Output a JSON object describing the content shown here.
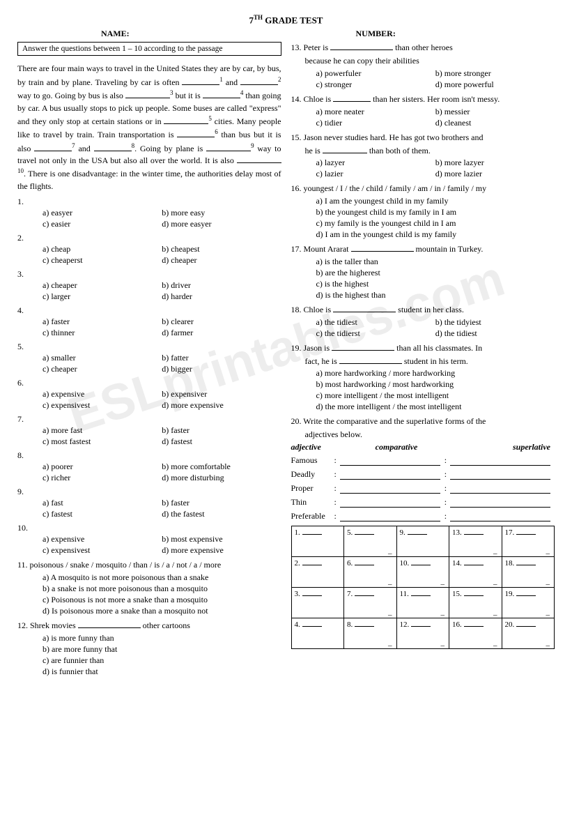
{
  "title_prefix": "7",
  "title_sup": "TH",
  "title_rest": " GRADE TEST",
  "labels": {
    "name": "NAME:",
    "number": "NUMBER:"
  },
  "watermark": "ESLprintables.com",
  "instruction": "Answer the questions between 1 – 10 according to the passage",
  "passage": {
    "t0": "There are four main ways to travel in the United States they are by car, by bus, by train and by plane. Traveling by car is often ",
    "s1": "1",
    "t1": " and ",
    "s2": "2",
    "t2": " way to go. Going by bus is also ",
    "s3": "3",
    "t3": " but it is ",
    "s4": "4",
    "t4": " than going by car. A bus usually stops to pick up people. Some buses are called \"express\" and they only stop at certain stations or in ",
    "s5": "5",
    "t5": " cities. Many people like to travel by train. Train transportation is ",
    "s6": "6",
    "t6": " than bus but it is also ",
    "s7": "7",
    "t7": " and ",
    "s8": "8",
    "t8": ". Going by plane is ",
    "s9": "9",
    "t9": " way to travel not only in the USA but also all over the world. It is also ",
    "s10": "10",
    "t10": ". There is one disadvantage: in the winter time, the authorities delay most of the flights."
  },
  "mcq_left": [
    {
      "n": "1.",
      "opts": [
        "a) easyer",
        "b) more easy",
        "c) easier",
        "d) more easyer"
      ]
    },
    {
      "n": "2.",
      "opts": [
        "a) cheap",
        "b) cheapest",
        "c) cheaperst",
        "d) cheaper"
      ]
    },
    {
      "n": "3.",
      "opts": [
        "a) cheaper",
        "b) driver",
        "c) larger",
        "d) harder"
      ]
    },
    {
      "n": "4.",
      "opts": [
        "a) faster",
        "b) clearer",
        "c) thinner",
        "d) farmer"
      ]
    },
    {
      "n": "5.",
      "opts": [
        "a) smaller",
        "b) fatter",
        "c) cheaper",
        "d) bigger"
      ]
    },
    {
      "n": "6.",
      "opts": [
        "a) expensive",
        "b) expensiver",
        "c) expensivest",
        "d) more expensive"
      ]
    },
    {
      "n": "7.",
      "opts": [
        "a) more fast",
        "b) faster",
        "c) most fastest",
        "d) fastest"
      ]
    },
    {
      "n": "8.",
      "opts": [
        "a) poorer",
        "b) more comfortable",
        "c) richer",
        "d) more disturbing"
      ]
    },
    {
      "n": "9.",
      "opts": [
        "a) fast",
        "b) faster",
        "c) fastest",
        "d) the fastest"
      ]
    },
    {
      "n": "10.",
      "opts": [
        "a) expensive",
        "b) most expensive",
        "c) expensivest",
        "d) more expensive"
      ]
    }
  ],
  "q11": {
    "stem": "11. poisonous / snake / mosquito / than / is / a / not / a / more",
    "opts": [
      "a) A mosquito is not more poisonous than a snake",
      "b) a snake is not more poisonous than a mosquito",
      "c) Poisonous is not more a snake than a mosquito",
      "d) Is poisonous more a snake than a mosquito not"
    ]
  },
  "q12": {
    "pre": "12. Shrek movies ",
    "post": " other cartoons",
    "opts": [
      "a) is more funny than",
      "b) are more funny that",
      "c) are funnier than",
      "d) is funnier that"
    ]
  },
  "q13": {
    "pre": "13. Peter is ",
    "post": " than other heroes",
    "line2": "because he can copy their abilities",
    "opts": [
      "a) powerfuler",
      "b) more stronger",
      "c) stronger",
      "d) more powerful"
    ]
  },
  "q14": {
    "pre": "14. Chloe is ",
    "post": " than her sisters. Her room isn't messy.",
    "opts": [
      "a) more neater",
      "b) messier",
      "c) tidier",
      "d) cleanest"
    ]
  },
  "q15": {
    "line1": "15. Jason never studies hard. He has got two brothers and",
    "pre": "he is ",
    "post": " than both of them.",
    "opts": [
      "a) lazyer",
      "b) more lazyer",
      "c) lazier",
      "d) more lazier"
    ]
  },
  "q16": {
    "stem": "16. youngest / I / the / child / family / am / in / family / my",
    "opts": [
      "a) I am the youngest child in my family",
      "b) the youngest child is my family in I am",
      "c) my family is the youngest child in I am",
      "d) I am in the youngest child is my family"
    ]
  },
  "q17": {
    "pre": "17. Mount Ararat ",
    "post": " mountain in Turkey.",
    "opts": [
      "a) is the taller than",
      "b) are the higherest",
      "c) is the highest",
      "d) is the highest than"
    ]
  },
  "q18": {
    "pre": "18. Chloe is ",
    "post": " student in her class.",
    "opts": [
      "a) the tidiest",
      "b) the tidyiest",
      "c) the tidierst",
      "d) the tidiest"
    ]
  },
  "q19": {
    "pre": "19. Jason is ",
    "mid": " than all his classmates. In",
    "pre2": "fact, he is ",
    "post2": " student in his term.",
    "opts": [
      "a) more hardworking / more hardworking",
      "b) most hardworking / most hardworking",
      "c) more intelligent / the most intelligent",
      "d) the more intelligent / the most intelligent"
    ]
  },
  "q20": {
    "stem": "20. Write the comparative and the superlative forms of the",
    "stem2": "adjectives below.",
    "headers": [
      "adjective",
      "comparative",
      "superlative"
    ],
    "rows": [
      "Famous",
      "Deadly",
      "Proper",
      "Thin",
      "Preferable"
    ]
  },
  "answer_grid": [
    [
      "1.",
      "5.",
      "9.",
      "13.",
      "17."
    ],
    [
      "2.",
      "6.",
      "10.",
      "14.",
      "18."
    ],
    [
      "3.",
      "7.",
      "11.",
      "15.",
      "19."
    ],
    [
      "4.",
      "8.",
      "12.",
      "16.",
      "20."
    ]
  ],
  "dash_cells": [
    [
      0,
      1
    ],
    [
      0,
      3
    ],
    [
      0,
      4
    ],
    [
      1,
      1
    ],
    [
      1,
      2
    ],
    [
      1,
      3
    ],
    [
      1,
      4
    ],
    [
      2,
      1
    ],
    [
      2,
      2
    ],
    [
      2,
      3
    ],
    [
      2,
      4
    ],
    [
      3,
      1
    ],
    [
      3,
      2
    ],
    [
      3,
      3
    ],
    [
      3,
      4
    ]
  ]
}
